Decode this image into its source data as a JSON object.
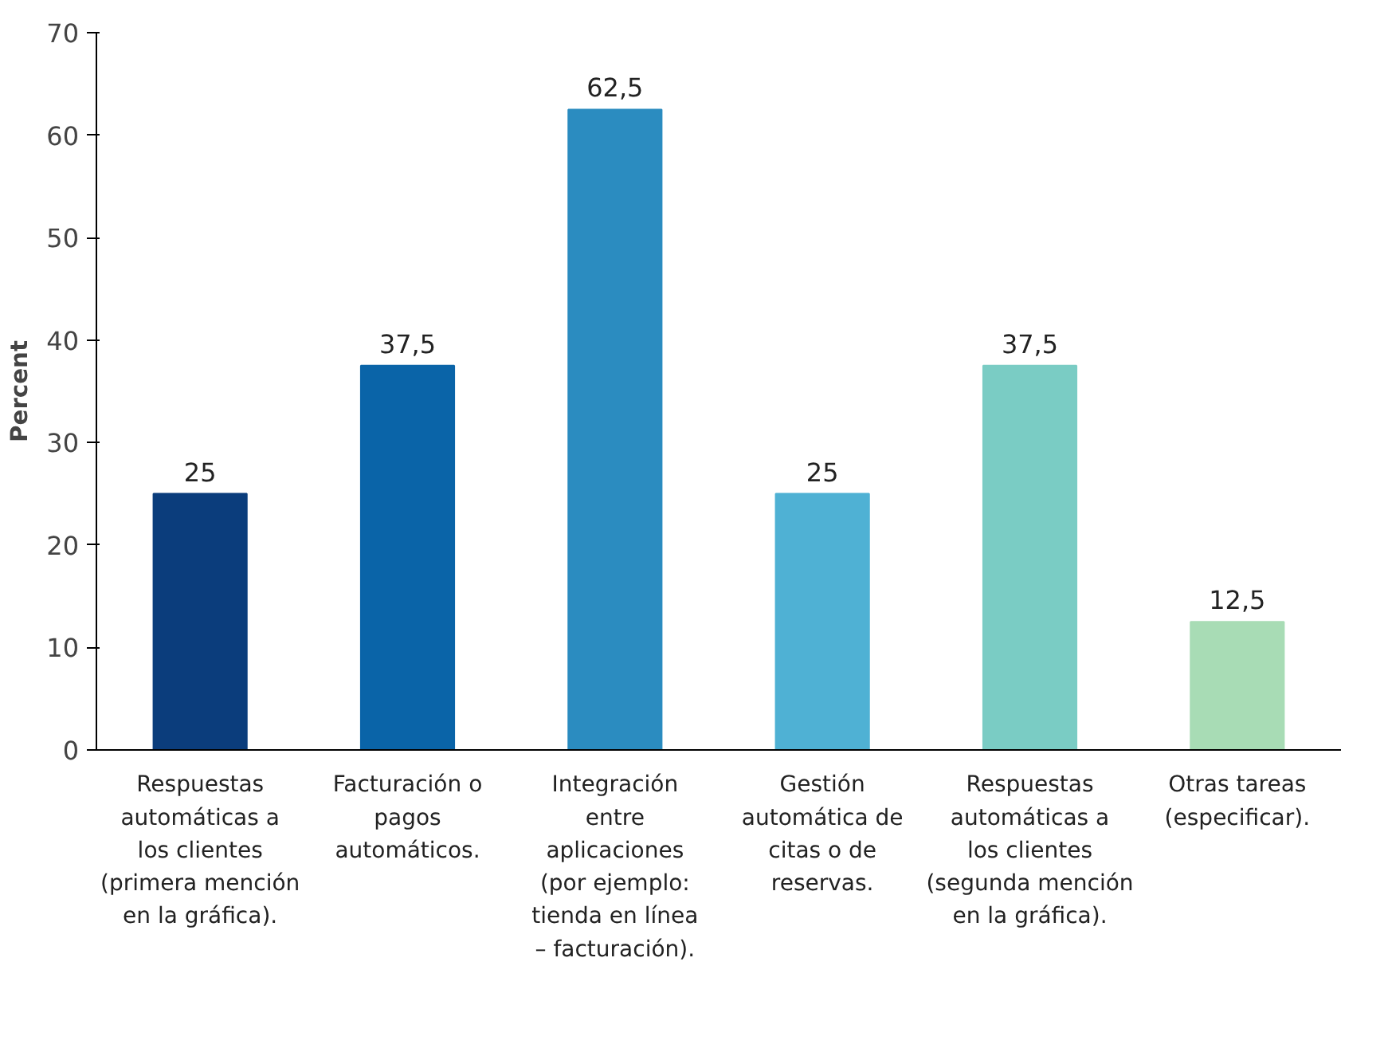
{
  "chart_data": {
    "type": "bar",
    "ylabel": "Percent",
    "categories": [
      "Respuestas automáticas a los clientes (primera mención en la gráfica).",
      "Facturación o pagos automáticos.",
      "Integración entre aplicaciones (por ejemplo: tienda en línea – facturación).",
      "Gestión automática de citas o de reservas.",
      "Respuestas automáticas a los clientes (segunda mención en la gráfica).",
      "Otras tareas (especificar)."
    ],
    "values": [
      25,
      37.5,
      62.5,
      25,
      37.5,
      12.5
    ],
    "colors": [
      "#0b3d7c",
      "#0a64a8",
      "#2b8cc0",
      "#4fb1d4",
      "#7accc4",
      "#a8dcb5"
    ],
    "value_labels": [
      "25",
      "37,5",
      "62,5",
      "25",
      "37,5",
      "12,5"
    ],
    "ylim": [
      0,
      70
    ],
    "yticks": [
      0,
      10,
      20,
      30,
      40,
      50,
      60,
      70
    ],
    "grid": false
  }
}
